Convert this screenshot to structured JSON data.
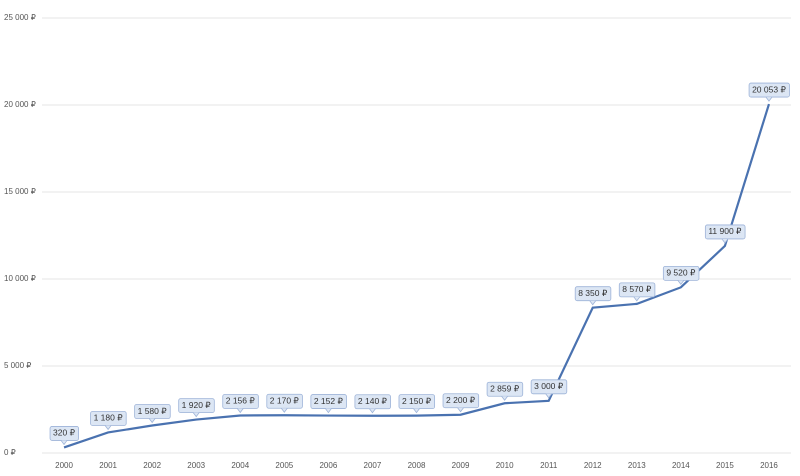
{
  "chart_data": {
    "type": "line",
    "categories": [
      "2000",
      "2001",
      "2002",
      "2003",
      "2004",
      "2005",
      "2006",
      "2007",
      "2008",
      "2009",
      "2010",
      "2011",
      "2012",
      "2013",
      "2014",
      "2015",
      "2016"
    ],
    "values": [
      320,
      1180,
      1580,
      1920,
      2156,
      2170,
      2152,
      2140,
      2150,
      2200,
      2859,
      3000,
      8350,
      8570,
      9520,
      11900,
      20053
    ],
    "value_labels": [
      "320 ₽",
      "1 180 ₽",
      "1 580 ₽",
      "1 920 ₽",
      "2 156 ₽",
      "2 170 ₽",
      "2 152 ₽",
      "2 140 ₽",
      "2 150 ₽",
      "2 200 ₽",
      "2 859 ₽",
      "3 000 ₽",
      "8 350 ₽",
      "8 570 ₽",
      "9 520 ₽",
      "11 900 ₽",
      "20 053 ₽"
    ],
    "color": "#4a72b0",
    "ylim": [
      0,
      25000
    ],
    "yticks": [
      {
        "value": 0,
        "label": "0 ₽"
      },
      {
        "value": 5000,
        "label": "5 000 ₽"
      },
      {
        "value": 10000,
        "label": "10 000 ₽"
      },
      {
        "value": 15000,
        "label": "15 000 ₽"
      },
      {
        "value": 20000,
        "label": "20 000 ₽"
      },
      {
        "value": 25000,
        "label": "25 000 ₽"
      }
    ],
    "grid": true
  }
}
